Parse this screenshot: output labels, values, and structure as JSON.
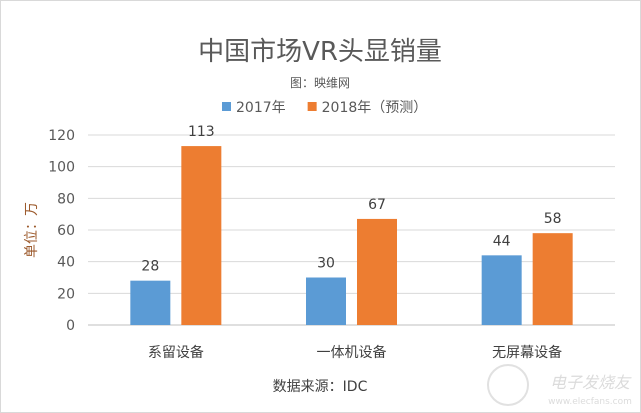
{
  "chart_data": {
    "type": "bar",
    "title": "中国市场VR头显销量",
    "subtitle": "图：映维网",
    "ylabel": "单位：万",
    "xlabel": "数据来源：IDC",
    "categories": [
      "系留设备",
      "一体机设备",
      "无屏幕设备"
    ],
    "series": [
      {
        "name": "2017年",
        "values": [
          28,
          30,
          44
        ],
        "color": "#5b9bd5"
      },
      {
        "name": "2018年（预测）",
        "values": [
          113,
          67,
          58
        ],
        "color": "#ed7d31"
      }
    ],
    "ylim": [
      0,
      120
    ],
    "yticks": [
      0,
      20,
      40,
      60,
      80,
      100,
      120
    ],
    "grid": true,
    "legend": "top",
    "data_labels": true
  },
  "watermark": {
    "text": "电子发烧友",
    "url_text": "www.elecfans.com"
  }
}
